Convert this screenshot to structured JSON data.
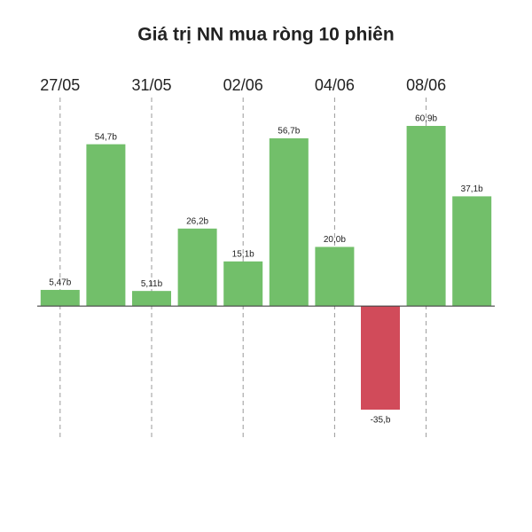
{
  "chart_data": {
    "type": "bar",
    "title": "Giá trị NN mua ròng 10 phiên",
    "categories": [
      "27/05",
      null,
      "31/05",
      null,
      "02/06",
      null,
      "04/06",
      null,
      "08/06",
      null
    ],
    "values": [
      5.47,
      54.7,
      5.11,
      26.2,
      15.1,
      56.7,
      20.0,
      -35,
      60.9,
      37.1
    ],
    "value_labels": [
      "5,47b",
      "54,7b",
      "5,11b",
      "26,2b",
      "15,1b",
      "56,7b",
      "20,0b",
      "-35,b",
      "60,9b",
      "37,1b"
    ],
    "color": "#72bf6a",
    "negative_color": "#d14b5a"
  }
}
